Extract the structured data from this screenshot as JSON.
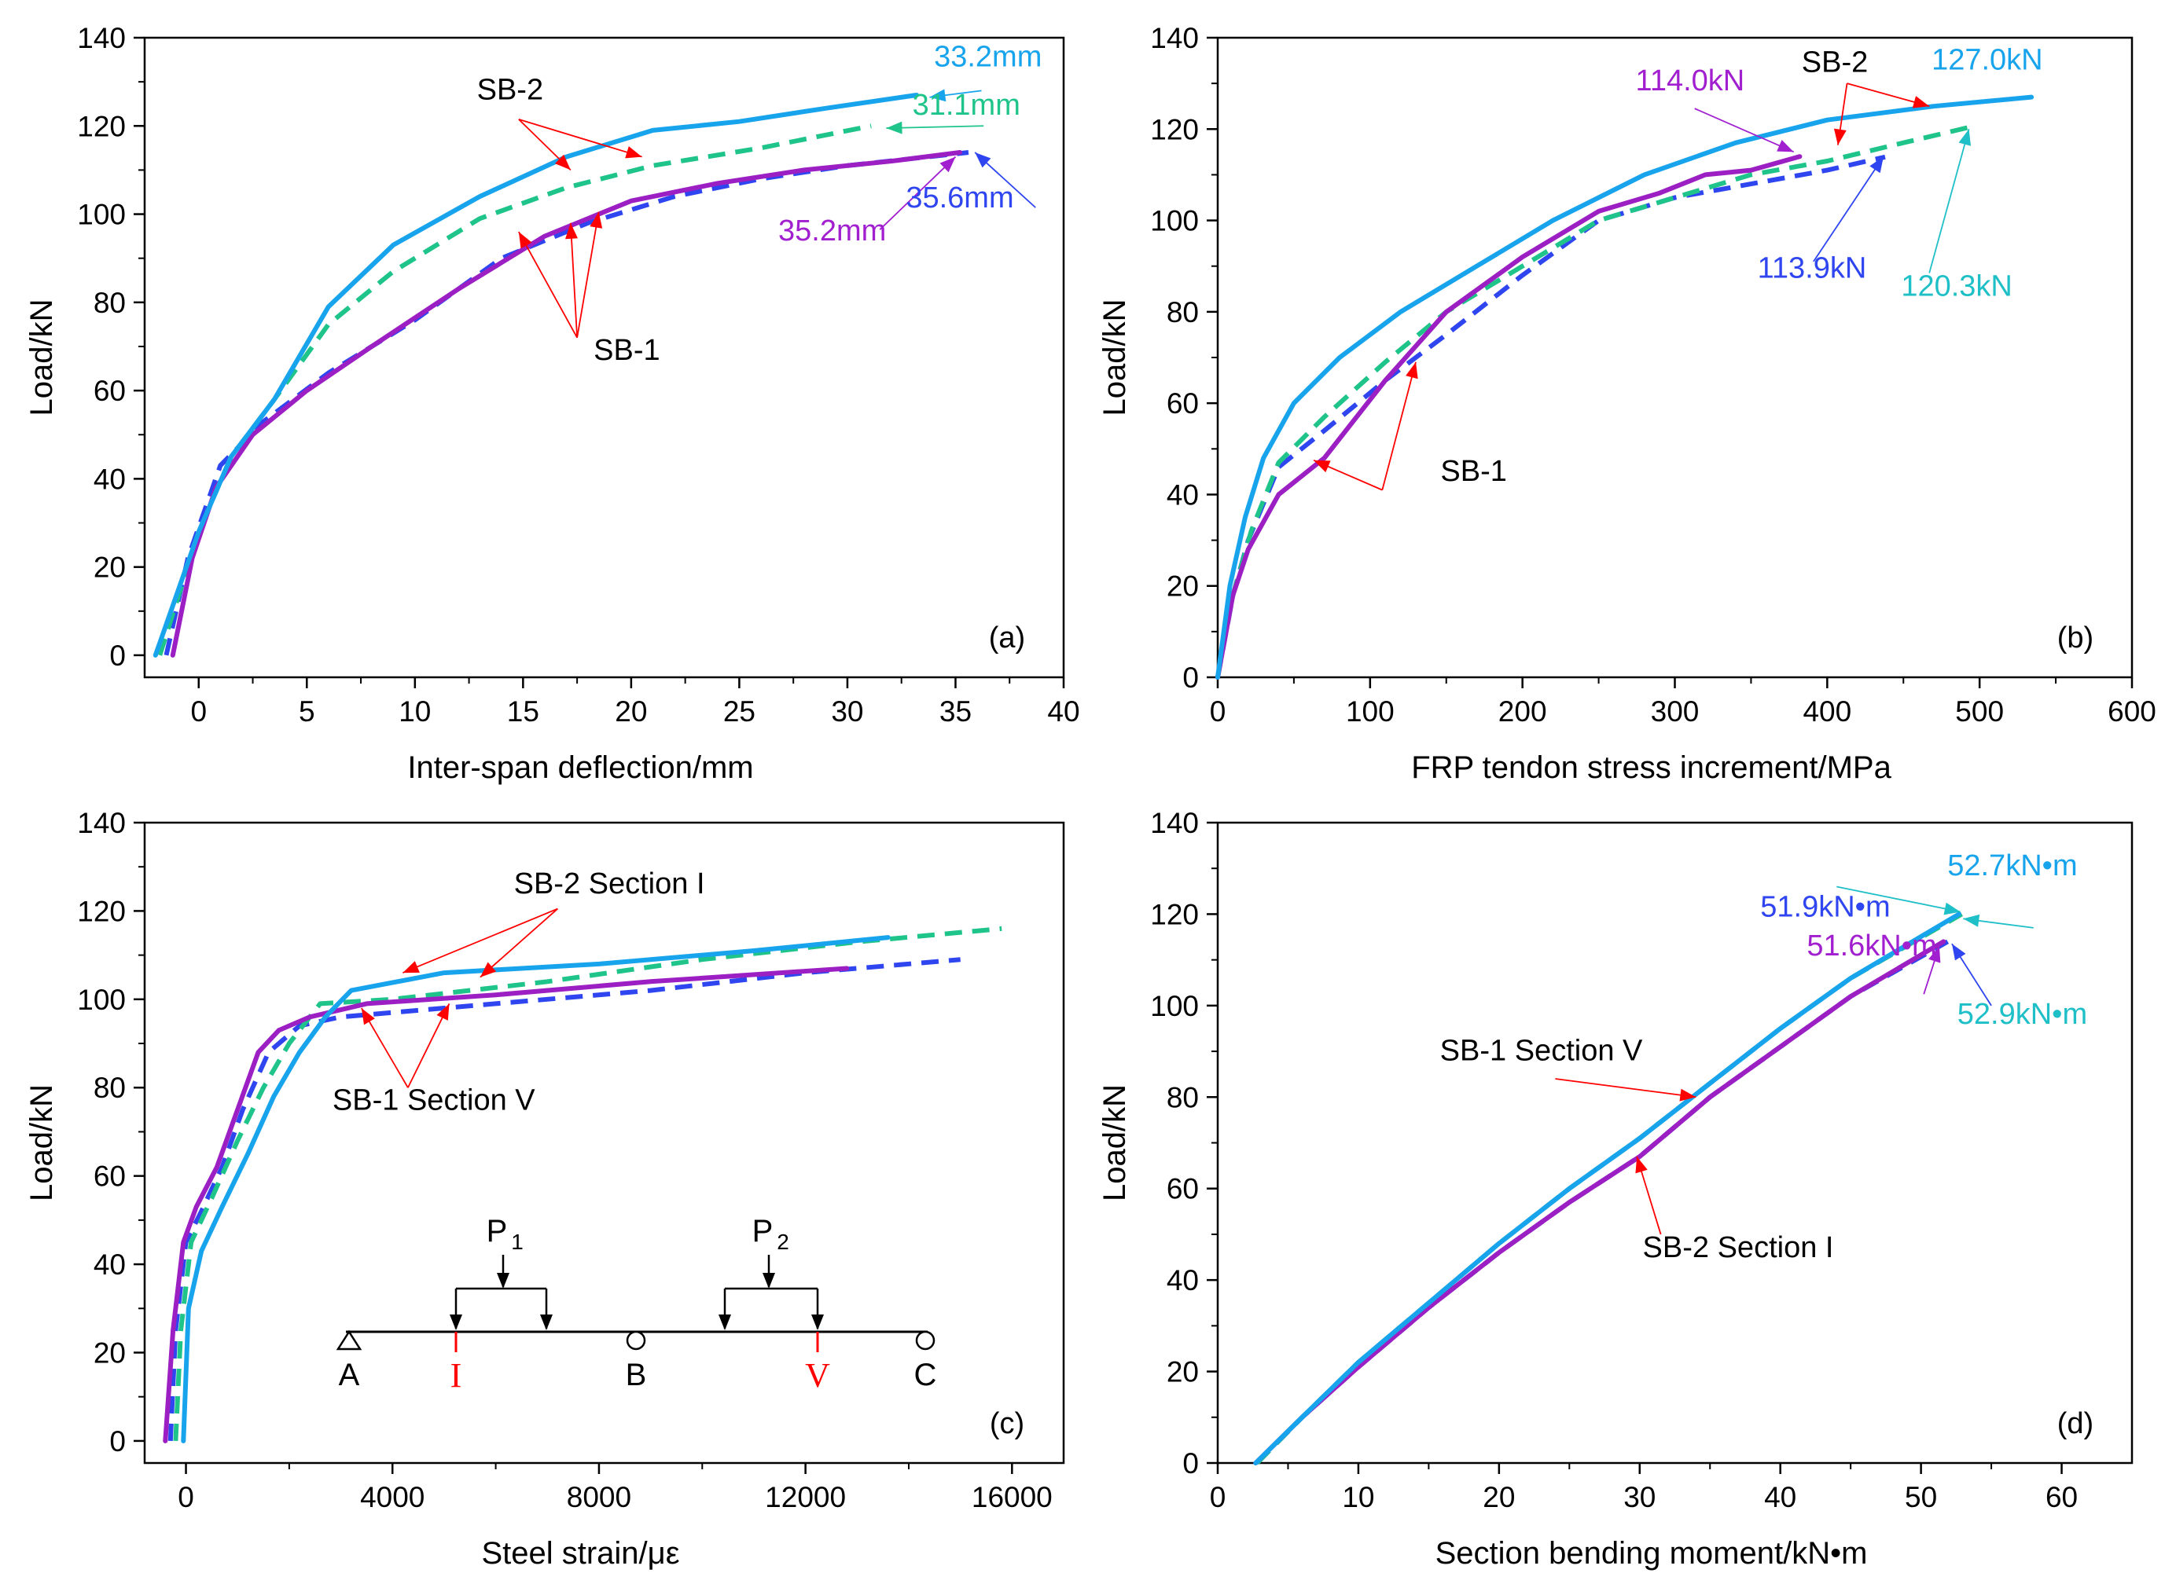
{
  "colors": {
    "sb1_v_solid": "#9b1fc2",
    "sb1_v_dash": "#2e45f0",
    "sb2_i_solid": "#18a4ec",
    "sb2_i_dash": "#1fc48a",
    "arrow_red": "#ff0000",
    "label_purple": "#a21fd0",
    "label_blue": "#2e45f0",
    "label_sky": "#18a4ec",
    "label_green": "#1fc48a",
    "label_cyan": "#1fbfc8"
  },
  "chart_data": [
    {
      "id": "a",
      "type": "line",
      "panel_label": "(a)",
      "xlabel": "Inter-span deflection/mm",
      "ylabel": "Load/kN",
      "xlim": [
        -2.5,
        40
      ],
      "ylim": [
        -5,
        140
      ],
      "xticks": [
        0,
        5,
        10,
        15,
        20,
        25,
        30,
        35,
        40
      ],
      "yticks": [
        0,
        20,
        40,
        60,
        80,
        100,
        120,
        140
      ],
      "series": [
        {
          "color": "#9b1fc2",
          "dash": false,
          "x": [
            -1.2,
            -0.3,
            0.8,
            2.5,
            5,
            8,
            12,
            16,
            20,
            24,
            28,
            32,
            35.2
          ],
          "y": [
            0,
            22,
            38,
            50,
            60,
            70,
            83,
            95,
            103,
            107,
            110,
            112,
            114
          ]
        },
        {
          "color": "#2e45f0",
          "dash": true,
          "x": [
            -1.5,
            -0.5,
            1,
            3,
            6,
            10,
            14,
            18,
            22,
            26,
            30,
            35.6
          ],
          "y": [
            0,
            22,
            43,
            53,
            64,
            76,
            90,
            98,
            104,
            108,
            111,
            114
          ]
        },
        {
          "color": "#18a4ec",
          "dash": false,
          "x": [
            -2,
            0,
            1.5,
            3.5,
            6,
            9,
            13,
            17,
            21,
            25,
            29,
            33.2
          ],
          "y": [
            0,
            28,
            45,
            58,
            79,
            93,
            104,
            113,
            119,
            121,
            124,
            127
          ]
        },
        {
          "color": "#1fc48a",
          "dash": true,
          "x": [
            -1.8,
            0,
            1.5,
            3.5,
            6,
            9,
            13,
            17,
            21,
            26,
            31.1
          ],
          "y": [
            0,
            28,
            45,
            58,
            75,
            87,
            99,
            106,
            111,
            115,
            120
          ]
        }
      ],
      "annotations": [
        {
          "text": "33.2mm",
          "color": "#18a4ec",
          "x": 36.5,
          "y": 133.5
        },
        {
          "text": "31.1mm",
          "color": "#1fc48a",
          "x": 35.5,
          "y": 122.5
        },
        {
          "text": "35.6mm",
          "color": "#2e45f0",
          "x": 35.2,
          "y": 101.5
        },
        {
          "text": "35.2mm",
          "color": "#a21fd0",
          "x": 29.3,
          "y": 94
        },
        {
          "text": "SB-2",
          "color": "#000000",
          "x": 14.4,
          "y": 126
        },
        {
          "text": "SB-1",
          "color": "#000000",
          "x": 19.8,
          "y": 67
        }
      ],
      "arrows": [
        {
          "color": "#18a4ec",
          "from": [
            36.2,
            128
          ],
          "to": [
            33.8,
            126.5
          ]
        },
        {
          "color": "#1fc48a",
          "from": [
            36.3,
            120
          ],
          "to": [
            31.8,
            119.5
          ]
        },
        {
          "color": "#2e45f0",
          "from": [
            38.7,
            101.5
          ],
          "to": [
            35.9,
            114
          ]
        },
        {
          "color": "#a21fd0",
          "from": [
            31.5,
            96.5
          ],
          "to": [
            35.0,
            113
          ]
        },
        {
          "color": "#ff0000",
          "from": [
            14.8,
            121.5
          ],
          "to": [
            17.2,
            110
          ]
        },
        {
          "color": "#ff0000",
          "from": [
            14.8,
            121.5
          ],
          "to": [
            20.5,
            113
          ]
        },
        {
          "color": "#ff0000",
          "from": [
            17.5,
            72
          ],
          "to": [
            14.8,
            96
          ]
        },
        {
          "color": "#ff0000",
          "from": [
            17.5,
            72
          ],
          "to": [
            17.2,
            98
          ]
        },
        {
          "color": "#ff0000",
          "from": [
            17.5,
            72
          ],
          "to": [
            18.5,
            100.5
          ]
        }
      ]
    },
    {
      "id": "b",
      "type": "line",
      "panel_label": "(b)",
      "xlabel": "FRP tendon stress increment/MPa",
      "ylabel": "Load/kN",
      "xlim": [
        0,
        600
      ],
      "ylim": [
        0,
        140
      ],
      "xticks": [
        0,
        100,
        200,
        300,
        400,
        500,
        600
      ],
      "yticks": [
        0,
        20,
        40,
        60,
        80,
        100,
        120,
        140
      ],
      "series": [
        {
          "color": "#9b1fc2",
          "dash": false,
          "x": [
            0,
            10,
            20,
            40,
            70,
            110,
            150,
            200,
            250,
            290,
            320,
            350,
            382
          ],
          "y": [
            0,
            18,
            28,
            40,
            48,
            65,
            80,
            92,
            102,
            106,
            110,
            111,
            114
          ]
        },
        {
          "color": "#2e45f0",
          "dash": true,
          "x": [
            0,
            10,
            20,
            40,
            70,
            110,
            150,
            200,
            250,
            300,
            350,
            400,
            438
          ],
          "y": [
            0,
            18,
            30,
            46,
            54,
            65,
            75,
            88,
            100,
            105,
            108,
            111,
            113.9
          ]
        },
        {
          "color": "#18a4ec",
          "dash": false,
          "x": [
            0,
            8,
            18,
            30,
            50,
            80,
            120,
            170,
            220,
            280,
            340,
            400,
            470,
            534
          ],
          "y": [
            0,
            20,
            35,
            48,
            60,
            70,
            80,
            90,
            100,
            110,
            117,
            122,
            125,
            127
          ]
        },
        {
          "color": "#1fc48a",
          "dash": true,
          "x": [
            0,
            10,
            22,
            40,
            70,
            110,
            150,
            200,
            250,
            300,
            350,
            400,
            450,
            492
          ],
          "y": [
            0,
            18,
            32,
            47,
            57,
            69,
            80,
            90,
            100,
            105,
            110,
            113,
            117,
            120.3
          ]
        }
      ],
      "annotations": [
        {
          "text": "127.0kN",
          "color": "#18a4ec",
          "x": 505,
          "y": 133
        },
        {
          "text": "SB-2",
          "color": "#000000",
          "x": 405,
          "y": 132.5
        },
        {
          "text": "114.0kN",
          "color": "#a21fd0",
          "x": 310,
          "y": 128.5
        },
        {
          "text": "113.9kN",
          "color": "#2e45f0",
          "x": 390,
          "y": 87.5
        },
        {
          "text": "120.3kN",
          "color": "#1fbfc8",
          "x": 485,
          "y": 83.5
        },
        {
          "text": "SB-1",
          "color": "#000000",
          "x": 168,
          "y": 43
        }
      ],
      "arrows": [
        {
          "color": "#ff0000",
          "from": [
            413,
            130
          ],
          "to": [
            407,
            116.5
          ]
        },
        {
          "color": "#ff0000",
          "from": [
            413,
            130
          ],
          "to": [
            467,
            125
          ]
        },
        {
          "color": "#a21fd0",
          "from": [
            313,
            124.5
          ],
          "to": [
            378,
            115
          ]
        },
        {
          "color": "#2e45f0",
          "from": [
            391,
            91
          ],
          "to": [
            437,
            114
          ]
        },
        {
          "color": "#1fbfc8",
          "from": [
            467,
            88.5
          ],
          "to": [
            493,
            120
          ]
        },
        {
          "color": "#ff0000",
          "from": [
            108,
            41
          ],
          "to": [
            63,
            47.5
          ]
        },
        {
          "color": "#ff0000",
          "from": [
            108,
            41
          ],
          "to": [
            130,
            69
          ]
        }
      ]
    },
    {
      "id": "c",
      "type": "line",
      "panel_label": "(c)",
      "xlabel": "Steel strain/με",
      "ylabel": "Load/kN",
      "xlim": [
        -800,
        17000
      ],
      "ylim": [
        -5,
        140
      ],
      "xticks": [
        0,
        4000,
        8000,
        12000,
        16000
      ],
      "yticks": [
        0,
        20,
        40,
        60,
        80,
        100,
        120,
        140
      ],
      "series": [
        {
          "color": "#9b1fc2",
          "dash": false,
          "x": [
            -400,
            -250,
            -50,
            200,
            600,
            1000,
            1400,
            1800,
            2400,
            3500,
            6000,
            9000,
            12800
          ],
          "y": [
            0,
            25,
            45,
            53,
            62,
            75,
            88,
            93,
            96,
            99,
            101,
            104,
            107
          ]
        },
        {
          "color": "#2e45f0",
          "dash": true,
          "x": [
            -300,
            -200,
            0,
            300,
            700,
            1100,
            1600,
            2200,
            3000,
            6000,
            9000,
            12000,
            15000
          ],
          "y": [
            0,
            25,
            45,
            52,
            62,
            75,
            88,
            94,
            96,
            99,
            102,
            106,
            109
          ]
        },
        {
          "color": "#18a4ec",
          "dash": false,
          "x": [
            -50,
            50,
            300,
            700,
            1200,
            1700,
            2200,
            2700,
            3200,
            5000,
            8000,
            11000,
            13600
          ],
          "y": [
            0,
            30,
            43,
            53,
            65,
            78,
            88,
            96,
            102,
            106,
            108,
            111,
            114
          ]
        },
        {
          "color": "#1fc48a",
          "dash": true,
          "x": [
            -200,
            -100,
            100,
            500,
            1000,
            1500,
            2000,
            2600,
            4000,
            7000,
            10000,
            13000,
            15800
          ],
          "y": [
            0,
            25,
            45,
            55,
            68,
            80,
            90,
            99,
            100,
            104,
            109,
            113,
            116
          ]
        }
      ],
      "annotations": [
        {
          "text": "SB-2 Section I",
          "color": "#000000",
          "x": 8200,
          "y": 124
        },
        {
          "text": "SB-1 Section V",
          "color": "#000000",
          "x": 4800,
          "y": 75
        }
      ],
      "arrows": [
        {
          "color": "#ff0000",
          "from": [
            7200,
            120.5
          ],
          "to": [
            4200,
            106
          ]
        },
        {
          "color": "#ff0000",
          "from": [
            7200,
            120.5
          ],
          "to": [
            5700,
            105
          ]
        },
        {
          "color": "#ff0000",
          "from": [
            4300,
            80
          ],
          "to": [
            3400,
            98
          ]
        },
        {
          "color": "#ff0000",
          "from": [
            4300,
            80
          ],
          "to": [
            5100,
            99
          ]
        }
      ],
      "beam_labels": {
        "supports": [
          "A",
          "B",
          "C"
        ],
        "sections": [
          "I",
          "V"
        ],
        "loads": [
          "P",
          "P"
        ],
        "load_subscripts": [
          "1",
          "2"
        ]
      }
    },
    {
      "id": "d",
      "type": "line",
      "panel_label": "(d)",
      "xlabel": "Section bending moment/kN•m",
      "ylabel": "Load/kN",
      "xlim": [
        0,
        65
      ],
      "ylim": [
        0,
        140
      ],
      "xticks": [
        0,
        10,
        20,
        30,
        40,
        50,
        60
      ],
      "yticks": [
        0,
        20,
        40,
        60,
        80,
        100,
        120,
        140
      ],
      "series": [
        {
          "color": "#9b1fc2",
          "dash": false,
          "x": [
            2.7,
            6,
            10,
            15,
            20,
            25,
            30,
            35,
            40,
            45,
            51.6
          ],
          "y": [
            0,
            10,
            21,
            34,
            46,
            57,
            67,
            80,
            91,
            102,
            114
          ]
        },
        {
          "color": "#2e45f0",
          "dash": true,
          "x": [
            2.8,
            6,
            10,
            15,
            20,
            25,
            30,
            35,
            40,
            45,
            51.9
          ],
          "y": [
            0,
            10,
            21,
            34,
            46,
            57,
            67,
            80,
            91,
            102,
            114
          ]
        },
        {
          "color": "#18a4ec",
          "dash": false,
          "x": [
            2.7,
            6,
            10,
            15,
            20,
            25,
            30,
            35,
            40,
            45,
            52.7
          ],
          "y": [
            0,
            10,
            22,
            35,
            48,
            60,
            71,
            83,
            95,
            106,
            120
          ]
        },
        {
          "color": "#1fc48a",
          "dash": true,
          "x": [
            2.8,
            6,
            10,
            15,
            20,
            25,
            30,
            35,
            40,
            45,
            52.9
          ],
          "y": [
            0,
            10,
            22,
            35,
            48,
            60,
            71,
            83,
            95,
            106,
            120
          ]
        }
      ],
      "annotations": [
        {
          "text": "52.7kN•m",
          "color": "#18a4ec",
          "x": 56.5,
          "y": 128.5
        },
        {
          "text": "51.9kN•m",
          "color": "#2e45f0",
          "x": 43.2,
          "y": 119.5
        },
        {
          "text": "51.6kN•m",
          "color": "#a21fd0",
          "x": 46.5,
          "y": 111
        },
        {
          "text": "52.9kN•m",
          "color": "#1fbfc8",
          "x": 57.2,
          "y": 96
        },
        {
          "text": "SB-1 Section V",
          "color": "#000000",
          "x": 23,
          "y": 88
        },
        {
          "text": "SB-2 Section I",
          "color": "#000000",
          "x": 37,
          "y": 45
        }
      ],
      "arrows": [
        {
          "color": "#1fbfc8",
          "from": [
            44,
            126
          ],
          "to": [
            52.8,
            120.5
          ]
        },
        {
          "color": "#1fbfc8",
          "from": [
            58,
            117
          ],
          "to": [
            53,
            119
          ]
        },
        {
          "color": "#a21fd0",
          "from": [
            50.2,
            102.5
          ],
          "to": [
            51.3,
            113
          ]
        },
        {
          "color": "#2e45f0",
          "from": [
            55,
            100
          ],
          "to": [
            52.2,
            113.5
          ]
        },
        {
          "color": "#ff0000",
          "from": [
            24,
            84
          ],
          "to": [
            34,
            80
          ]
        },
        {
          "color": "#ff0000",
          "from": [
            31.5,
            50
          ],
          "to": [
            29.8,
            67
          ]
        }
      ]
    }
  ]
}
